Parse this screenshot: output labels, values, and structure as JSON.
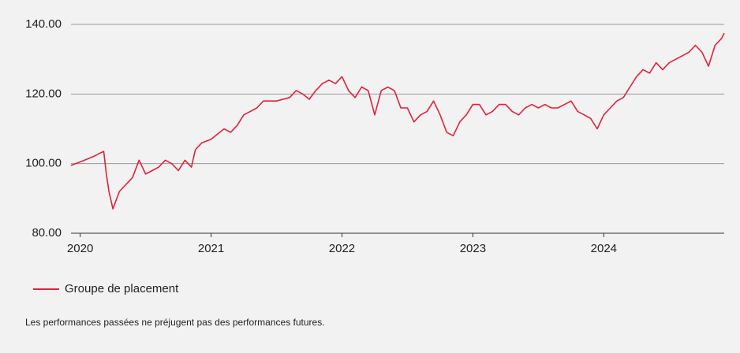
{
  "chart_data": {
    "type": "line",
    "x": [
      2019.93,
      2020.0,
      2020.1,
      2020.15,
      2020.18,
      2020.2,
      2020.22,
      2020.25,
      2020.3,
      2020.35,
      2020.4,
      2020.45,
      2020.5,
      2020.55,
      2020.6,
      2020.65,
      2020.7,
      2020.75,
      2020.8,
      2020.85,
      2020.88,
      2020.93,
      2021.0,
      2021.1,
      2021.15,
      2021.2,
      2021.25,
      2021.35,
      2021.4,
      2021.5,
      2021.6,
      2021.65,
      2021.7,
      2021.75,
      2021.8,
      2021.85,
      2021.9,
      2021.95,
      2022.0,
      2022.05,
      2022.1,
      2022.15,
      2022.2,
      2022.25,
      2022.3,
      2022.35,
      2022.4,
      2022.45,
      2022.5,
      2022.55,
      2022.6,
      2022.65,
      2022.7,
      2022.75,
      2022.8,
      2022.85,
      2022.9,
      2022.95,
      2023.0,
      2023.05,
      2023.1,
      2023.15,
      2023.2,
      2023.25,
      2023.3,
      2023.35,
      2023.4,
      2023.45,
      2023.5,
      2023.55,
      2023.6,
      2023.65,
      2023.7,
      2023.75,
      2023.8,
      2023.85,
      2023.9,
      2023.95,
      2024.0,
      2024.05,
      2024.1,
      2024.15,
      2024.2,
      2024.25,
      2024.3,
      2024.35,
      2024.4,
      2024.45,
      2024.5,
      2024.55,
      2024.6,
      2024.65,
      2024.7,
      2024.75,
      2024.8,
      2024.85,
      2024.9,
      2024.92
    ],
    "series": [
      {
        "name": "Groupe de placement",
        "color": "#e0213d",
        "values": [
          99.5,
          100.5,
          102,
          103,
          103.5,
          97,
          92,
          87,
          92,
          94,
          96,
          101,
          97,
          98,
          99,
          101,
          100,
          98,
          101,
          99,
          104,
          106,
          107,
          110,
          109,
          111,
          114,
          116,
          118,
          118,
          119,
          121,
          120,
          118.5,
          121,
          123,
          124,
          123,
          125,
          121,
          119,
          122,
          121,
          114,
          121,
          122,
          121,
          116,
          116,
          112,
          114,
          115,
          118,
          114,
          109,
          108,
          112,
          114,
          117,
          117,
          114,
          115,
          117,
          117,
          115,
          114,
          116,
          117,
          116,
          117,
          116,
          116,
          117,
          118,
          115,
          114,
          113,
          110,
          114,
          116,
          118,
          119,
          122,
          125,
          127,
          126,
          129,
          127,
          129,
          130,
          131,
          132,
          134,
          132,
          128,
          134,
          136,
          137.5
        ]
      }
    ],
    "xlim": [
      2019.93,
      2024.92
    ],
    "xticks": [
      2020,
      2021,
      2022,
      2023,
      2024
    ],
    "ylim": [
      80,
      140
    ],
    "yticks": [
      {
        "value": 80,
        "label": "80.00"
      },
      {
        "value": 100,
        "label": "100.00"
      },
      {
        "value": 120,
        "label": "120.00"
      },
      {
        "value": 140,
        "label": "140.00"
      }
    ],
    "grid": true,
    "note": "Les performances passées ne préjugent pas des performances futures."
  }
}
